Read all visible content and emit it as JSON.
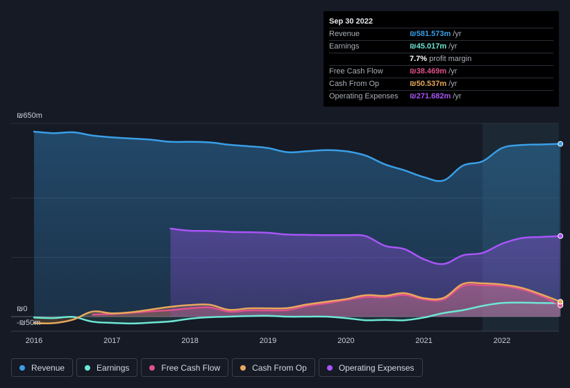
{
  "tooltip": {
    "date": "Sep 30 2022",
    "rows": [
      {
        "label": "Revenue",
        "value": "₪581.573m",
        "unit": "/yr",
        "color": "#3a9fe8"
      },
      {
        "label": "Earnings",
        "value": "₪45.017m",
        "unit": "/yr",
        "color": "#6ee7d5"
      },
      {
        "label": "",
        "value": "7.7%",
        "unit": "profit margin",
        "color": "#ffffff"
      },
      {
        "label": "Free Cash Flow",
        "value": "₪38.469m",
        "unit": "/yr",
        "color": "#e0528c"
      },
      {
        "label": "Cash From Op",
        "value": "₪50.537m",
        "unit": "/yr",
        "color": "#e8a85c"
      },
      {
        "label": "Operating Expenses",
        "value": "₪271.682m",
        "unit": "/yr",
        "color": "#a855f7"
      }
    ]
  },
  "legend": [
    {
      "label": "Revenue",
      "color": "#3a9fe8"
    },
    {
      "label": "Earnings",
      "color": "#6ee7d5"
    },
    {
      "label": "Free Cash Flow",
      "color": "#e0528c"
    },
    {
      "label": "Cash From Op",
      "color": "#e8a85c"
    },
    {
      "label": "Operating Expenses",
      "color": "#a855f7"
    }
  ],
  "chart_data": {
    "type": "area",
    "title": "",
    "ylabel_top": "₪650m",
    "ylabel_zero": "₪0",
    "ylabel_bottom": "-₪50m",
    "ylim": [
      -50,
      650
    ],
    "xlim": [
      2015.97,
      2022.75
    ],
    "x_ticks": [
      "2016",
      "2017",
      "2018",
      "2019",
      "2020",
      "2021",
      "2022"
    ],
    "x_tick_values": [
      2016,
      2017,
      2018,
      2019,
      2020,
      2021,
      2022
    ],
    "forecast_shade_start": 2021.75,
    "series": [
      {
        "name": "Revenue",
        "color": "#3a9fe8",
        "x": [
          2016.0,
          2016.25,
          2016.5,
          2016.75,
          2017.0,
          2017.25,
          2017.5,
          2017.75,
          2018.0,
          2018.25,
          2018.5,
          2018.75,
          2019.0,
          2019.25,
          2019.5,
          2019.75,
          2020.0,
          2020.25,
          2020.5,
          2020.75,
          2021.0,
          2021.25,
          2021.5,
          2021.75,
          2022.0,
          2022.25,
          2022.5,
          2022.75
        ],
        "values": [
          622,
          617,
          620,
          609,
          603,
          599,
          595,
          588,
          588,
          586,
          578,
          573,
          567,
          553,
          556,
          560,
          556,
          542,
          512,
          492,
          469,
          458,
          508,
          522,
          567,
          577,
          579,
          581
        ]
      },
      {
        "name": "Earnings",
        "color": "#6ee7d5",
        "x": [
          2016.0,
          2016.25,
          2016.5,
          2016.75,
          2017.0,
          2017.25,
          2017.5,
          2017.75,
          2018.0,
          2018.25,
          2018.5,
          2018.75,
          2019.0,
          2019.25,
          2019.5,
          2019.75,
          2020.0,
          2020.25,
          2020.5,
          2020.75,
          2021.0,
          2021.25,
          2021.5,
          2021.75,
          2022.0,
          2022.25,
          2022.5,
          2022.75
        ],
        "values": [
          -3,
          -5,
          -1,
          -17,
          -21,
          -23,
          -20,
          -16,
          -7,
          -2,
          0,
          2,
          3,
          0,
          0,
          0,
          -5,
          -12,
          -11,
          -12,
          -3,
          12,
          22,
          36,
          46,
          47,
          46,
          45
        ]
      },
      {
        "name": "Free Cash Flow",
        "color": "#e0528c",
        "x": [
          2016.75,
          2017.0,
          2017.25,
          2017.5,
          2017.75,
          2018.0,
          2018.25,
          2018.5,
          2018.75,
          2019.0,
          2019.25,
          2019.5,
          2019.75,
          2020.0,
          2020.25,
          2020.5,
          2020.75,
          2021.0,
          2021.25,
          2021.5,
          2021.75,
          2022.0,
          2022.25,
          2022.5,
          2022.75
        ],
        "values": [
          7,
          9,
          13,
          18,
          22,
          28,
          31,
          17,
          21,
          21,
          22,
          36,
          45,
          56,
          66,
          65,
          73,
          58,
          58,
          103,
          105,
          103,
          92,
          70,
          38
        ]
      },
      {
        "name": "Cash From Op",
        "color": "#e8a85c",
        "x": [
          2016.0,
          2016.25,
          2016.5,
          2016.75,
          2017.0,
          2017.25,
          2017.5,
          2017.75,
          2018.0,
          2018.25,
          2018.5,
          2018.75,
          2019.0,
          2019.25,
          2019.5,
          2019.75,
          2020.0,
          2020.25,
          2020.5,
          2020.75,
          2021.0,
          2021.25,
          2021.5,
          2021.75,
          2022.0,
          2022.25,
          2022.5,
          2022.75
        ],
        "values": [
          -22,
          -22,
          -10,
          17,
          11,
          15,
          24,
          33,
          39,
          40,
          23,
          28,
          28,
          29,
          41,
          50,
          59,
          72,
          70,
          79,
          62,
          63,
          110,
          112,
          108,
          97,
          75,
          50
        ]
      },
      {
        "name": "Operating Expenses",
        "color": "#a855f7",
        "x": [
          2017.75,
          2018.0,
          2018.25,
          2018.5,
          2018.75,
          2019.0,
          2019.25,
          2019.5,
          2019.75,
          2020.0,
          2020.25,
          2020.5,
          2020.75,
          2021.0,
          2021.25,
          2021.5,
          2021.75,
          2022.0,
          2022.25,
          2022.5,
          2022.75
        ],
        "values": [
          296,
          289,
          288,
          285,
          284,
          282,
          276,
          275,
          274,
          274,
          271,
          238,
          227,
          193,
          177,
          206,
          214,
          245,
          264,
          268,
          271
        ]
      }
    ]
  }
}
